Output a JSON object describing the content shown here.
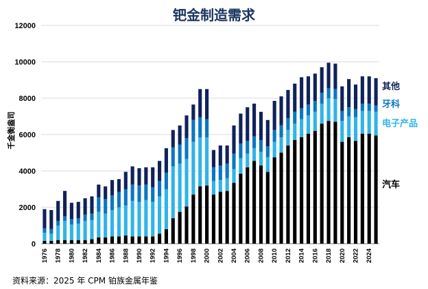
{
  "title": "钯金制造需求",
  "source": "资料来源：2025 年 CPM 铂族金属年鉴",
  "chart_data": {
    "type": "bar",
    "stacked": true,
    "title": "钯金制造需求",
    "ylabel": "千金衡盎司",
    "xlabel": "",
    "ylim": [
      0,
      12000
    ],
    "yticks": [
      0,
      2000,
      4000,
      6000,
      8000,
      10000,
      12000
    ],
    "grid": true,
    "x": [
      1976,
      1977,
      1978,
      1979,
      1980,
      1981,
      1982,
      1983,
      1984,
      1985,
      1986,
      1987,
      1988,
      1989,
      1990,
      1991,
      1992,
      1993,
      1994,
      1995,
      1996,
      1997,
      1998,
      1999,
      2000,
      2001,
      2002,
      2003,
      2004,
      2005,
      2006,
      2007,
      2008,
      2009,
      2010,
      2011,
      2012,
      2013,
      2014,
      2015,
      2016,
      2017,
      2018,
      2019,
      2020,
      2021,
      2022,
      2023,
      2024,
      2025
    ],
    "xtick_labels": [
      "1976",
      "1978",
      "1980",
      "1982",
      "1984",
      "1986",
      "1988",
      "1990",
      "1992",
      "1994",
      "1996",
      "1998",
      "2000",
      "2002",
      "2004",
      "2006",
      "2008",
      "2010",
      "2012",
      "2014",
      "2016",
      "2018",
      "2020",
      "2022",
      "2024"
    ],
    "series": [
      {
        "name": "汽车",
        "color": "#000000",
        "values": [
          150,
          150,
          200,
          200,
          200,
          200,
          200,
          250,
          350,
          350,
          400,
          400,
          450,
          400,
          400,
          400,
          400,
          550,
          800,
          1400,
          1750,
          2050,
          2700,
          3150,
          3200,
          2700,
          2850,
          2900,
          3350,
          3850,
          4200,
          4550,
          4300,
          3950,
          4750,
          5000,
          5400,
          5700,
          5850,
          6050,
          6200,
          6600,
          6750,
          6700,
          5600,
          5850,
          5650,
          6050,
          6050,
          5950
        ]
      },
      {
        "name": "电子产品",
        "color": "#2fb4e9",
        "values": [
          450,
          400,
          800,
          1050,
          850,
          900,
          1050,
          1050,
          1400,
          1300,
          1450,
          1600,
          1650,
          1950,
          1900,
          2000,
          1900,
          2050,
          2200,
          2850,
          2650,
          2600,
          2900,
          2700,
          2650,
          750,
          650,
          700,
          750,
          850,
          750,
          700,
          750,
          800,
          850,
          850,
          850,
          900,
          1000,
          1000,
          1050,
          1100,
          1250,
          1250,
          1150,
          1150,
          1300,
          1250,
          1250,
          1300
        ]
      },
      {
        "name": "牙科",
        "color": "#0a77c4",
        "values": [
          250,
          250,
          250,
          250,
          300,
          300,
          350,
          350,
          800,
          800,
          800,
          850,
          900,
          900,
          900,
          850,
          800,
          850,
          900,
          1050,
          1050,
          1150,
          1200,
          1100,
          1000,
          750,
          800,
          800,
          850,
          800,
          700,
          650,
          650,
          600,
          650,
          650,
          650,
          650,
          600,
          600,
          600,
          600,
          550,
          550,
          550,
          500,
          450,
          400,
          400,
          350
        ]
      },
      {
        "name": "其他",
        "color": "#10225a",
        "values": [
          1050,
          1050,
          1100,
          1400,
          900,
          900,
          900,
          950,
          700,
          700,
          850,
          700,
          950,
          1000,
          950,
          950,
          1100,
          1100,
          1350,
          950,
          1050,
          1250,
          850,
          1550,
          1650,
          950,
          1100,
          1000,
          1550,
          1650,
          1850,
          1800,
          1550,
          1450,
          1600,
          1600,
          1550,
          1550,
          1700,
          1550,
          1500,
          1400,
          1400,
          1400,
          1350,
          1550,
          1350,
          1500,
          1500,
          1500
        ]
      }
    ]
  },
  "series_labels": {
    "other": "其他",
    "dental": "牙科",
    "electronics": "电子产品",
    "auto": "汽车"
  }
}
